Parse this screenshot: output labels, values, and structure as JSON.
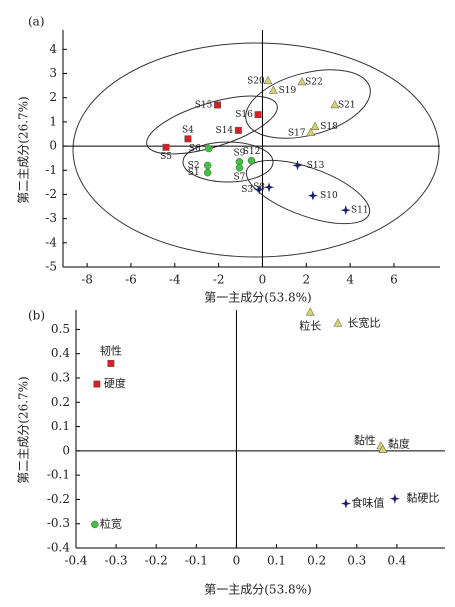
{
  "chart_data": [
    {
      "type": "scatter",
      "title": "(a)",
      "x_label": "第一主成分(53.8%)",
      "y_label": "第二主成分(26.7%)",
      "xlim": [
        -9.1,
        8.1
      ],
      "ylim": [
        -5,
        4.8
      ],
      "xticks": [
        -8,
        -6,
        -4,
        -2,
        0,
        2,
        4,
        6
      ],
      "yticks": [
        -5,
        -4,
        -3,
        -2,
        -1,
        0,
        1,
        2,
        3,
        4
      ],
      "series": [
        {
          "color": "#d42020",
          "marker": "square",
          "labels": [
            "S15",
            "S16",
            "S14",
            "S4",
            "S5"
          ],
          "x": [
            -2.05,
            -0.2,
            -1.1,
            -3.4,
            -4.4
          ],
          "y": [
            1.7,
            1.3,
            0.65,
            0.3,
            -0.05
          ]
        },
        {
          "color": "#3cc43c",
          "marker": "circle",
          "labels": [
            "S6",
            "S2",
            "S1",
            "S9",
            "S7",
            "S12"
          ],
          "x": [
            -2.45,
            -2.5,
            -2.5,
            -1.05,
            -1.05,
            -0.5
          ],
          "y": [
            -0.1,
            -0.8,
            -1.1,
            -0.65,
            -0.9,
            -0.6
          ]
        },
        {
          "color": "#d8d070",
          "marker": "triangle",
          "labels": [
            "S20",
            "S22",
            "S19",
            "S21",
            "S18",
            "S17"
          ],
          "x": [
            0.25,
            1.8,
            0.5,
            3.3,
            2.4,
            2.2
          ],
          "y": [
            2.7,
            2.65,
            2.3,
            1.7,
            0.8,
            0.55
          ]
        },
        {
          "color": "#1a1f70",
          "marker": "star",
          "labels": [
            "S13",
            "S8",
            "S3",
            "S10",
            "S11"
          ],
          "x": [
            1.6,
            0.3,
            -0.15,
            2.3,
            3.8
          ],
          "y": [
            -0.8,
            -1.7,
            -1.8,
            -2.05,
            -2.65
          ]
        }
      ]
    },
    {
      "type": "scatter",
      "title": "(b)",
      "x_label": "第一主成分(53.8%)",
      "y_label": "第二主成分(26.7%)",
      "xlim": [
        -0.4,
        0.52
      ],
      "ylim": [
        -0.4,
        0.58
      ],
      "xticks": [
        -0.4,
        -0.3,
        -0.2,
        -0.1,
        0,
        0.1,
        0.2,
        0.3,
        0.4
      ],
      "yticks": [
        -0.4,
        -0.3,
        -0.2,
        -0.1,
        0,
        0.1,
        0.2,
        0.3,
        0.4,
        0.5
      ],
      "series": [
        {
          "color": "#d42020",
          "marker": "square",
          "labels": [
            "韧性",
            "硬度"
          ],
          "x": [
            -0.313,
            -0.348
          ],
          "y": [
            0.36,
            0.275
          ]
        },
        {
          "color": "#3cc43c",
          "marker": "circle",
          "labels": [
            "粒宽"
          ],
          "x": [
            -0.353
          ],
          "y": [
            -0.303
          ]
        },
        {
          "color": "#d8d070",
          "marker": "triangle",
          "labels": [
            "粒长",
            "长宽比",
            "黏性",
            "黏度"
          ],
          "x": [
            0.184,
            0.253,
            0.36,
            0.365
          ],
          "y": [
            0.57,
            0.525,
            0.02,
            0.005
          ]
        },
        {
          "color": "#1a1f70",
          "marker": "star",
          "labels": [
            "食味值",
            "黏硬比"
          ],
          "x": [
            0.273,
            0.395
          ],
          "y": [
            -0.217,
            -0.197
          ]
        }
      ]
    }
  ]
}
